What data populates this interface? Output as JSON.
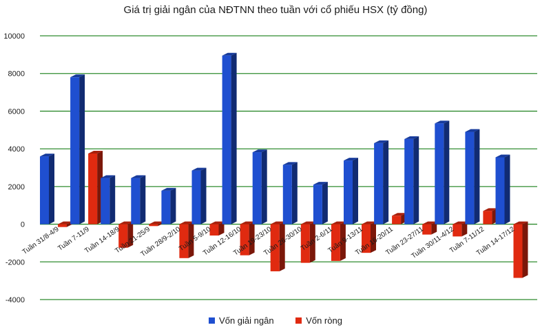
{
  "chart_data": {
    "type": "bar",
    "title": "Giá trị giải ngân của NĐTNN theo tuần với cổ phiếu HSX (tỷ đồng)",
    "categories": [
      "Tuần 31/8-4/9",
      "Tuần 7-11/9",
      "Tuần 14-18/9",
      "Tuần 21-25/9",
      "Tuần 28/9-2/10",
      "Tuần 5-9/10",
      "Tuần 12-16/10",
      "Tuần 19-23/10",
      "Tuần 26-30/10",
      "Tuần 2-6/11",
      "Tuần 9-13/11",
      "Tuần 16-20/11",
      "Tuần 23-27/11",
      "Tuần 30/11-4/12",
      "Tuần 7-11/12",
      "Tuần 14-17/12"
    ],
    "series": [
      {
        "name": "Vốn giải ngân",
        "color": "#1f4fd0",
        "values": [
          3600,
          7800,
          2450,
          2450,
          1780,
          2850,
          8950,
          3820,
          3150,
          2100,
          3380,
          4300,
          4520,
          5350,
          4900,
          3550
        ]
      },
      {
        "name": "Vốn ròng",
        "color": "#e02a10",
        "values": [
          -150,
          3750,
          -1250,
          -100,
          -1800,
          -600,
          -1650,
          -2500,
          -2050,
          -1950,
          -1520,
          450,
          -550,
          -650,
          700,
          -2850
        ]
      }
    ],
    "ylim": [
      -4000,
      10000
    ],
    "yticks": [
      -4000,
      -2000,
      0,
      2000,
      4000,
      6000,
      8000,
      10000
    ],
    "grid": true,
    "legend_position": "bottom"
  }
}
